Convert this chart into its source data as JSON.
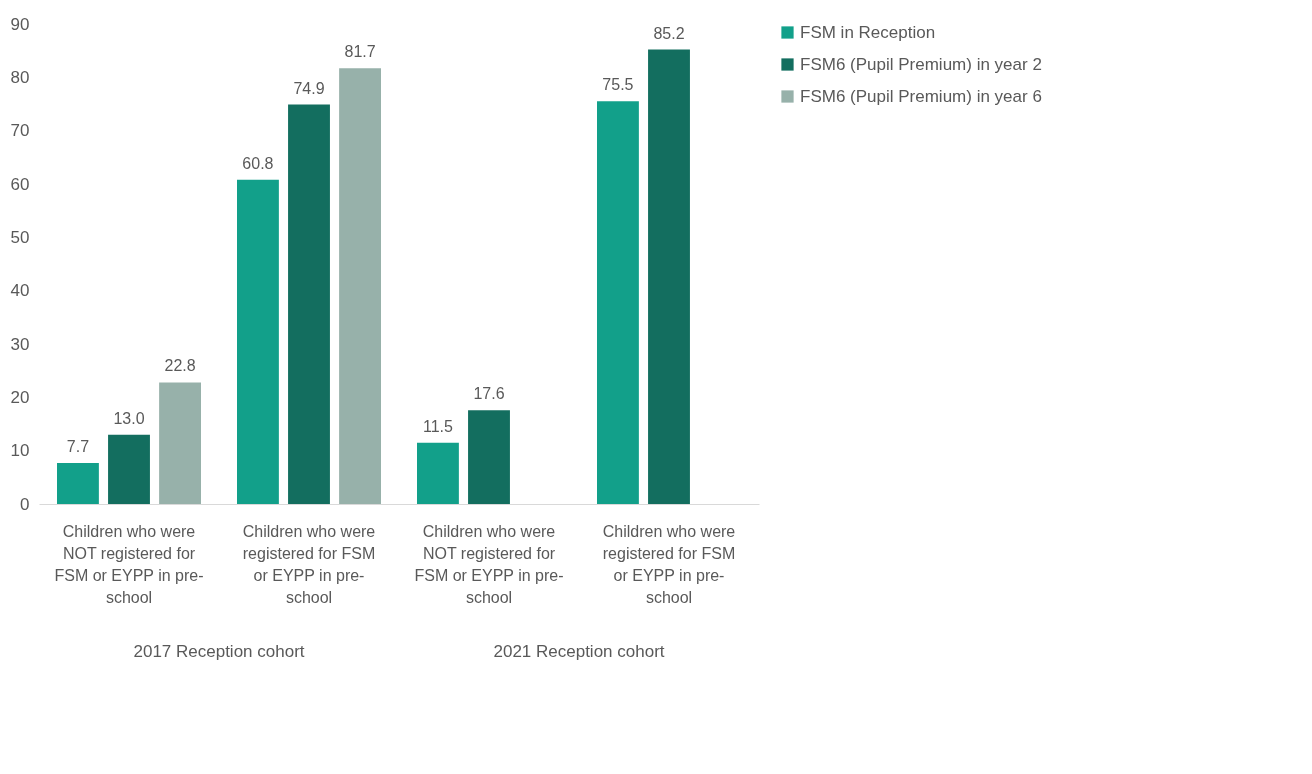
{
  "chart_data": {
    "type": "bar",
    "categories": [
      "Children who were NOT registered for FSM or EYPP in pre-school",
      "Children who were registered for FSM or EYPP in pre-school",
      "Children who were NOT registered for FSM or EYPP in pre-school",
      "Children who were registered for FSM or EYPP in pre-school"
    ],
    "series": [
      {
        "name": "FSM in Reception",
        "color": "#12a08a",
        "values": [
          7.7,
          60.8,
          11.5,
          75.5
        ],
        "value_labels": [
          "7.7",
          "60.8",
          "11.5",
          "75.5"
        ]
      },
      {
        "name": "FSM6 (Pupil Premium) in year 2",
        "color": "#136e5f",
        "values": [
          13.0,
          74.9,
          17.6,
          85.2
        ],
        "value_labels": [
          "13.0",
          "74.9",
          "17.6",
          "85.2"
        ]
      },
      {
        "name": "FSM6 (Pupil Premium) in year 6",
        "color": "#97b1aa",
        "values": [
          22.8,
          81.7,
          null,
          null
        ],
        "value_labels": [
          "22.8",
          "81.7",
          null,
          null
        ]
      }
    ],
    "annotations": [
      "2017 Reception  cohort",
      "2021 Reception cohort"
    ],
    "ylim": [
      0,
      90
    ],
    "yticks": [
      0,
      10,
      20,
      30,
      40,
      50,
      60,
      70,
      80,
      90
    ],
    "grid": false,
    "legend": "right"
  }
}
